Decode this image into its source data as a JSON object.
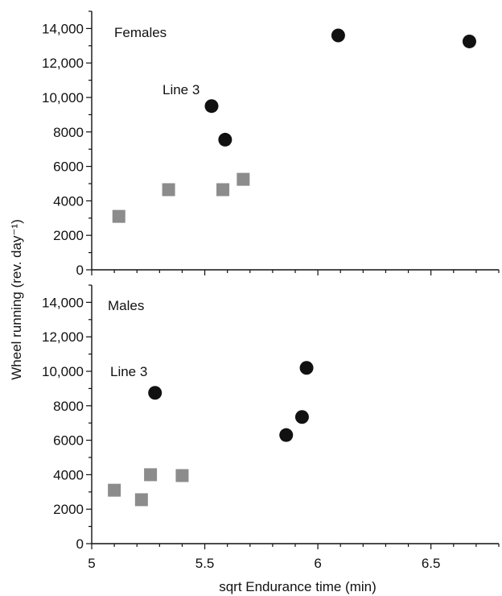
{
  "chart_data": [
    {
      "type": "scatter",
      "panel_label": "Females",
      "annotation": "Line 3",
      "xlim": [
        5,
        6.8
      ],
      "ylim": [
        0,
        15000
      ],
      "yticks": [
        "0",
        "2000",
        "4000",
        "6000",
        "8000",
        "10,000",
        "12,000",
        "14,000"
      ],
      "ytick_values": [
        0,
        2000,
        4000,
        6000,
        8000,
        10000,
        12000,
        14000
      ],
      "series": [
        {
          "marker": "square",
          "color": "#8c8c8c",
          "points": [
            [
              5.12,
              3100
            ],
            [
              5.34,
              4650
            ],
            [
              5.58,
              4650
            ],
            [
              5.67,
              5250
            ]
          ]
        },
        {
          "marker": "circle",
          "color": "#111111",
          "points": [
            [
              5.53,
              9500
            ],
            [
              5.59,
              7550
            ],
            [
              6.09,
              13600
            ],
            [
              6.67,
              13250
            ]
          ]
        }
      ]
    },
    {
      "type": "scatter",
      "panel_label": "Males",
      "annotation": "Line 3",
      "xlim": [
        5,
        6.8
      ],
      "ylim": [
        0,
        15000
      ],
      "yticks": [
        "0",
        "2000",
        "4000",
        "6000",
        "8000",
        "10,000",
        "12,000",
        "14,000"
      ],
      "ytick_values": [
        0,
        2000,
        4000,
        6000,
        8000,
        10000,
        12000,
        14000
      ],
      "series": [
        {
          "marker": "square",
          "color": "#8c8c8c",
          "points": [
            [
              5.1,
              3100
            ],
            [
              5.22,
              2550
            ],
            [
              5.26,
              4000
            ],
            [
              5.4,
              3950
            ]
          ]
        },
        {
          "marker": "circle",
          "color": "#111111",
          "points": [
            [
              5.28,
              8750
            ],
            [
              5.86,
              6300
            ],
            [
              5.93,
              7350
            ],
            [
              5.95,
              10200
            ]
          ]
        }
      ]
    }
  ],
  "xticks": [
    "5",
    "5.5",
    "6",
    "6.5"
  ],
  "xtick_values": [
    5,
    5.5,
    6,
    6.5
  ],
  "xlabel": "sqrt Endurance time (min)",
  "ylabel": "Wheel running (rev. day⁻¹)"
}
